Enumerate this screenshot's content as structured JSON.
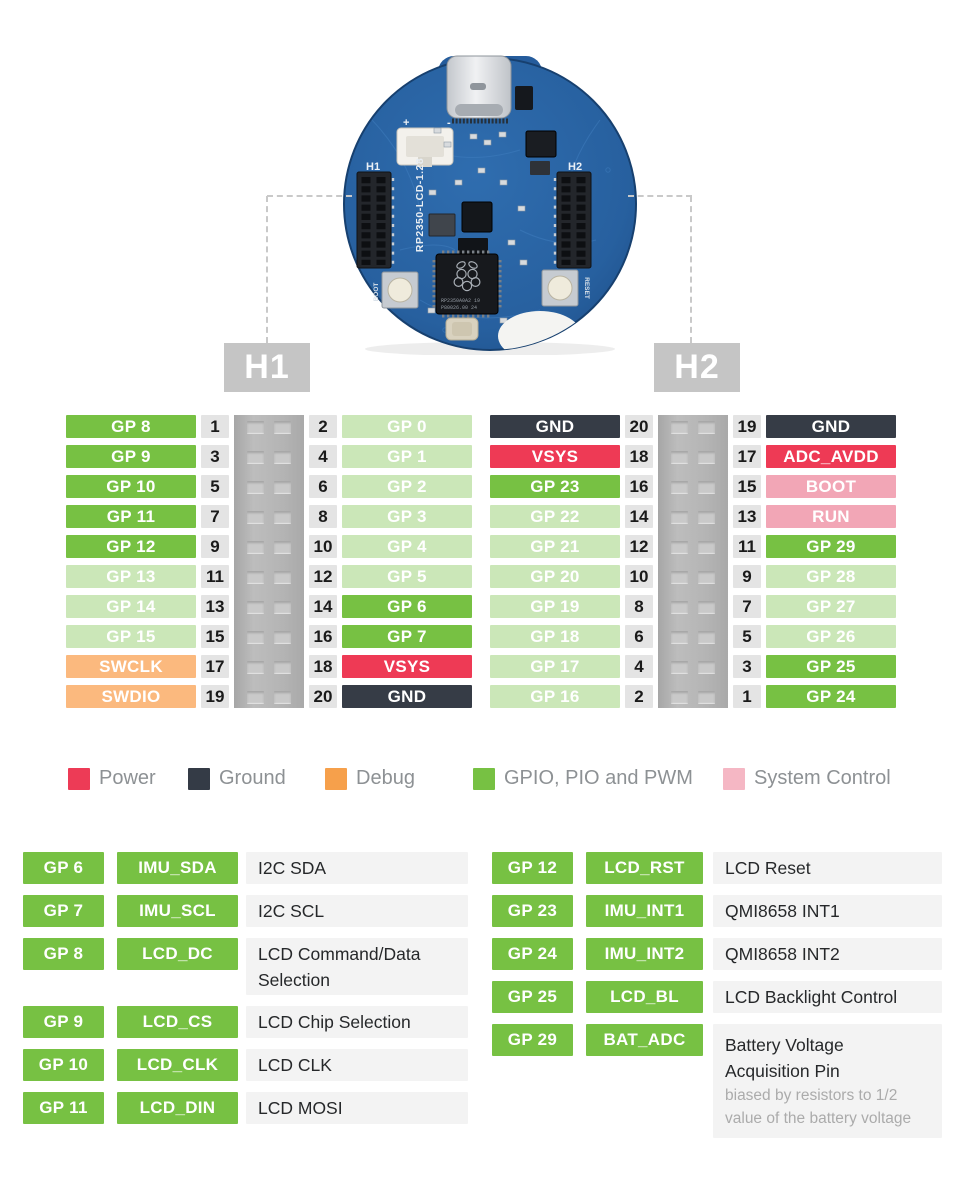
{
  "board": {
    "silk_name": "RP2350-LCD-1.28",
    "silk_h1": "H1",
    "silk_h2": "H2",
    "silk_boot": "BOOT",
    "silk_reset": "RESET",
    "silk_plus": "+",
    "silk_minus": "-",
    "chip_line1": "RP2350A0A2 19",
    "chip_line2": "P80026.00 24"
  },
  "headers": {
    "h1": {
      "title": "H1",
      "rows": [
        {
          "left": "GP 8",
          "left_type": "gpio",
          "left_pin": "1",
          "right_pin": "2",
          "right": "GP 0",
          "right_type": "gpio_dim"
        },
        {
          "left": "GP 9",
          "left_type": "gpio",
          "left_pin": "3",
          "right_pin": "4",
          "right": "GP 1",
          "right_type": "gpio_dim"
        },
        {
          "left": "GP 10",
          "left_type": "gpio",
          "left_pin": "5",
          "right_pin": "6",
          "right": "GP 2",
          "right_type": "gpio_dim"
        },
        {
          "left": "GP 11",
          "left_type": "gpio",
          "left_pin": "7",
          "right_pin": "8",
          "right": "GP 3",
          "right_type": "gpio_dim"
        },
        {
          "left": "GP 12",
          "left_type": "gpio",
          "left_pin": "9",
          "right_pin": "10",
          "right": "GP 4",
          "right_type": "gpio_dim"
        },
        {
          "left": "GP 13",
          "left_type": "gpio_dim",
          "left_pin": "11",
          "right_pin": "12",
          "right": "GP 5",
          "right_type": "gpio_dim"
        },
        {
          "left": "GP 14",
          "left_type": "gpio_dim",
          "left_pin": "13",
          "right_pin": "14",
          "right": "GP 6",
          "right_type": "gpio"
        },
        {
          "left": "GP 15",
          "left_type": "gpio_dim",
          "left_pin": "15",
          "right_pin": "16",
          "right": "GP 7",
          "right_type": "gpio"
        },
        {
          "left": "SWCLK",
          "left_type": "debug",
          "left_pin": "17",
          "right_pin": "18",
          "right": "VSYS",
          "right_type": "power"
        },
        {
          "left": "SWDIO",
          "left_type": "debug",
          "left_pin": "19",
          "right_pin": "20",
          "right": "GND",
          "right_type": "ground"
        }
      ]
    },
    "h2": {
      "title": "H2",
      "rows": [
        {
          "left": "GND",
          "left_type": "ground",
          "left_pin": "20",
          "right_pin": "19",
          "right": "GND",
          "right_type": "ground"
        },
        {
          "left": "VSYS",
          "left_type": "power",
          "left_pin": "18",
          "right_pin": "17",
          "right": "ADC_AVDD",
          "right_type": "power"
        },
        {
          "left": "GP 23",
          "left_type": "gpio",
          "left_pin": "16",
          "right_pin": "15",
          "right": "BOOT",
          "right_type": "system"
        },
        {
          "left": "GP 22",
          "left_type": "gpio_dim",
          "left_pin": "14",
          "right_pin": "13",
          "right": "RUN",
          "right_type": "system"
        },
        {
          "left": "GP 21",
          "left_type": "gpio_dim",
          "left_pin": "12",
          "right_pin": "11",
          "right": "GP 29",
          "right_type": "gpio"
        },
        {
          "left": "GP 20",
          "left_type": "gpio_dim",
          "left_pin": "10",
          "right_pin": "9",
          "right": "GP 28",
          "right_type": "gpio_dim"
        },
        {
          "left": "GP 19",
          "left_type": "gpio_dim",
          "left_pin": "8",
          "right_pin": "7",
          "right": "GP 27",
          "right_type": "gpio_dim"
        },
        {
          "left": "GP 18",
          "left_type": "gpio_dim",
          "left_pin": "6",
          "right_pin": "5",
          "right": "GP 26",
          "right_type": "gpio_dim"
        },
        {
          "left": "GP 17",
          "left_type": "gpio_dim",
          "left_pin": "4",
          "right_pin": "3",
          "right": "GP 25",
          "right_type": "gpio"
        },
        {
          "left": "GP 16",
          "left_type": "gpio_dim",
          "left_pin": "2",
          "right_pin": "1",
          "right": "GP 24",
          "right_type": "gpio"
        }
      ]
    }
  },
  "legend": {
    "items": [
      {
        "label": "Power",
        "color": "#ED3B56"
      },
      {
        "label": "Ground",
        "color": "#343B46"
      },
      {
        "label": "Debug",
        "color": "#F6A04B"
      },
      {
        "label": "GPIO, PIO and PWM",
        "color": "#77C143"
      },
      {
        "label": "System Control",
        "color": "#F5B7C4"
      }
    ]
  },
  "functions": {
    "left": [
      {
        "gpio": "GP 6",
        "signal": "IMU_SDA",
        "desc_lines": [
          "I2C SDA"
        ]
      },
      {
        "gpio": "GP 7",
        "signal": "IMU_SCL",
        "desc_lines": [
          "I2C SCL"
        ]
      },
      {
        "gpio": "GP 8",
        "signal": "LCD_DC",
        "desc_lines": [
          "LCD Command/Data",
          "Selection"
        ]
      },
      {
        "gpio": "GP 9",
        "signal": "LCD_CS",
        "desc_lines": [
          "LCD Chip Selection"
        ]
      },
      {
        "gpio": "GP 10",
        "signal": "LCD_CLK",
        "desc_lines": [
          "LCD CLK"
        ]
      },
      {
        "gpio": "GP 11",
        "signal": "LCD_DIN",
        "desc_lines": [
          "LCD MOSI"
        ]
      }
    ],
    "right": [
      {
        "gpio": "GP 12",
        "signal": "LCD_RST",
        "desc_lines": [
          "LCD Reset"
        ]
      },
      {
        "gpio": "GP 23",
        "signal": "IMU_INT1",
        "desc_lines": [
          "QMI8658 INT1"
        ]
      },
      {
        "gpio": "GP 24",
        "signal": "IMU_INT2",
        "desc_lines": [
          "QMI8658 INT2"
        ]
      },
      {
        "gpio": "GP 25",
        "signal": "LCD_BL",
        "desc_lines": [
          "LCD Backlight Control"
        ]
      },
      {
        "gpio": "GP 29",
        "signal": "BAT_ADC",
        "desc_lines": [
          "Battery Voltage",
          "Acquisition Pin"
        ],
        "note_lines": [
          "biased by resistors to 1/2",
          "value of the battery voltage"
        ]
      }
    ]
  },
  "colors": {
    "gpio": "#77C143",
    "gpio_dim": "#CBE7B8",
    "debug": "#FBB97E",
    "power": "#EE3A55",
    "ground": "#363C46",
    "system": "#F2A6B6",
    "pin_number_bg": "#E4E4E4",
    "pin_number_text": "#1A1A1A",
    "title_bg": "#C5C5C5",
    "desc_bg": "#F3F3F3",
    "desc_text": "#26282A",
    "note_text": "#ABABAB",
    "legend_text": "#8D9194",
    "connector_hole": "#C9C9C9",
    "dash": "#C9C9C9"
  }
}
